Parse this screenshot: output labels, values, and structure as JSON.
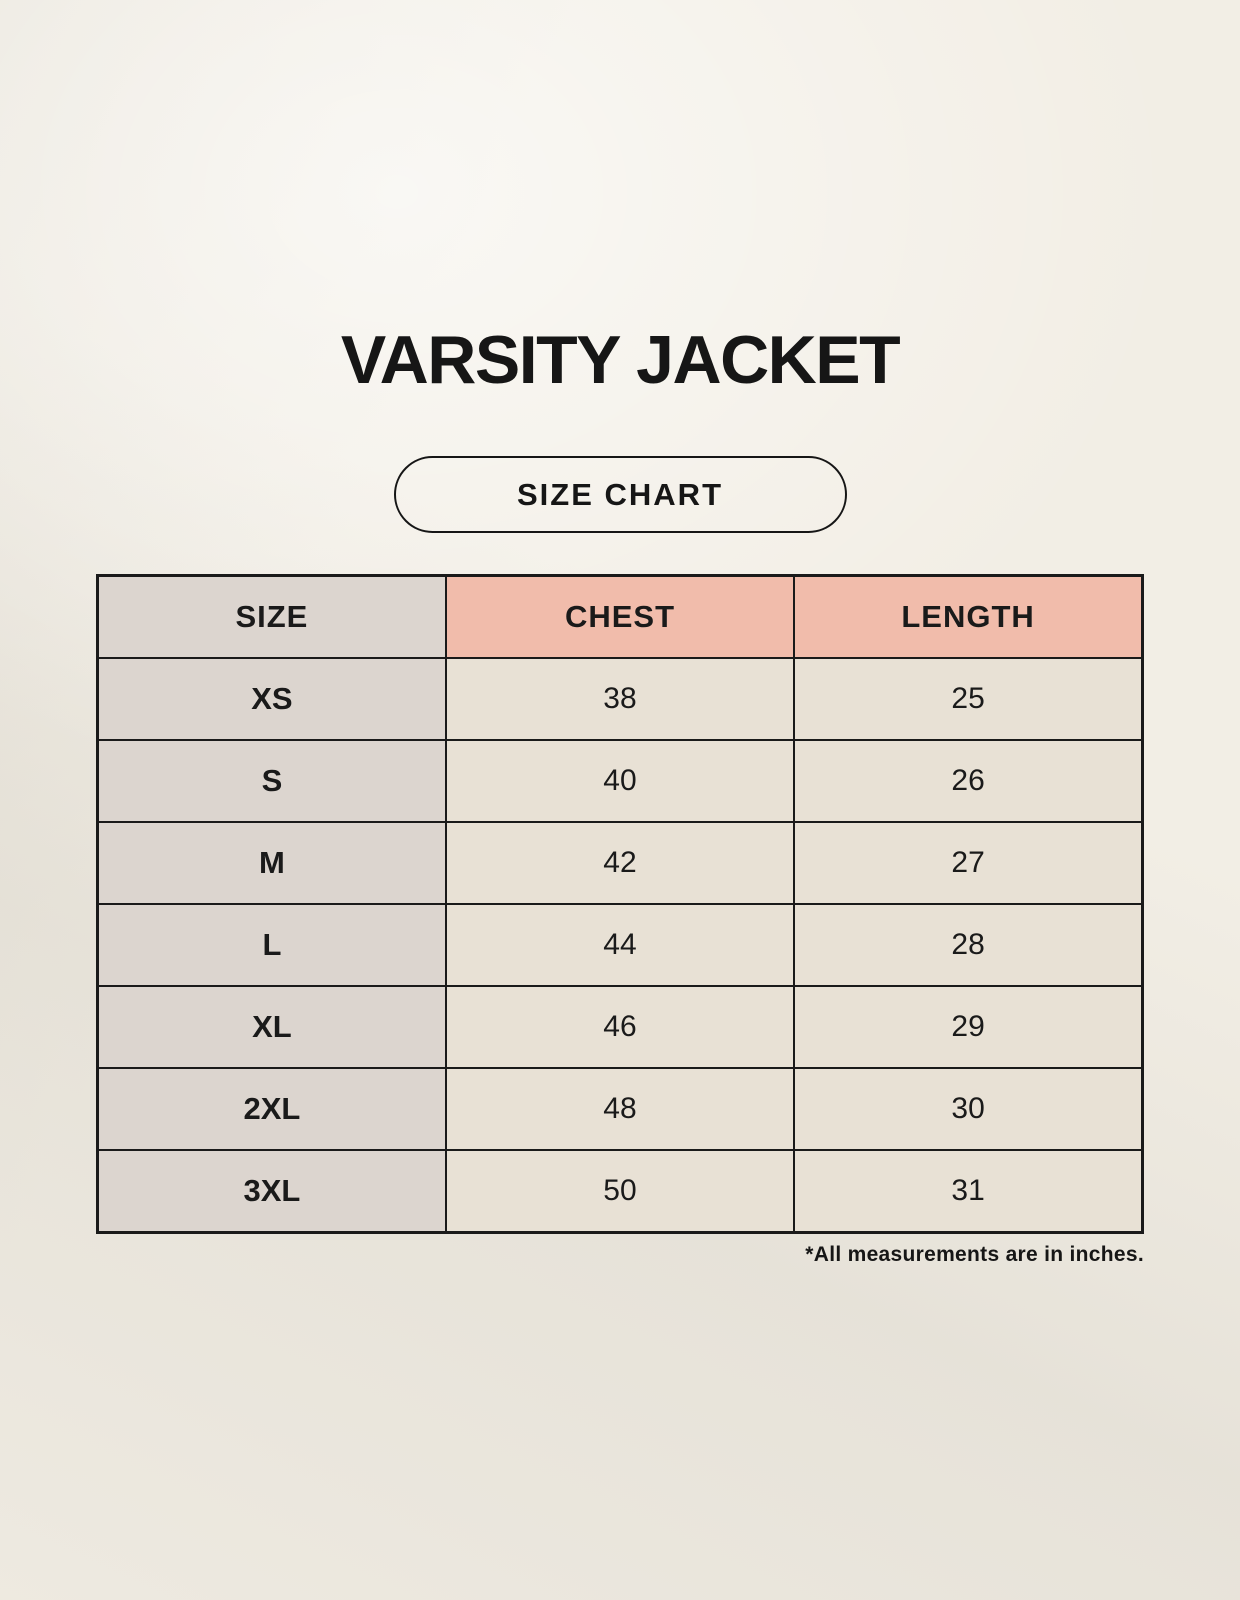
{
  "header": {
    "title": "VARSITY JACKET",
    "badge_label": "SIZE CHART"
  },
  "footnote": "*All measurements are in inches.",
  "colors": {
    "background": "#F2EEE5",
    "label_cell_bg": "#DCD5CF",
    "measure_header_bg": "#F1BCAB",
    "value_cell_bg": "#E8E1D5",
    "border": "#1A1A1A",
    "text": "#161616"
  },
  "chart_data": {
    "type": "table",
    "title": "VARSITY JACKET",
    "columns": [
      "SIZE",
      "CHEST",
      "LENGTH"
    ],
    "rows": [
      [
        "XS",
        38,
        25
      ],
      [
        "S",
        40,
        26
      ],
      [
        "M",
        42,
        27
      ],
      [
        "L",
        44,
        28
      ],
      [
        "XL",
        46,
        29
      ],
      [
        "2XL",
        48,
        30
      ],
      [
        "3XL",
        50,
        31
      ]
    ],
    "units": "inches",
    "note": "*All measurements are in inches."
  }
}
